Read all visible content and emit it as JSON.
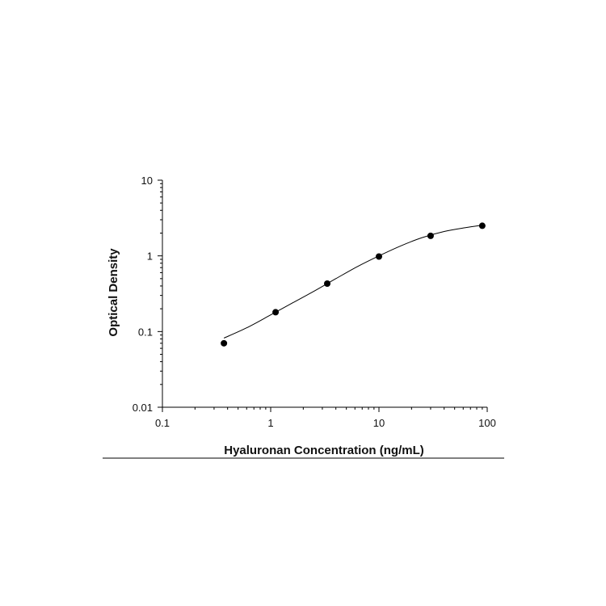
{
  "chart_data": {
    "type": "scatter",
    "title": "",
    "xlabel": "Hyaluronan Concentration (ng/mL)",
    "ylabel": "Optical Density",
    "xscale": "log",
    "yscale": "log",
    "xlim": [
      0.1,
      100
    ],
    "ylim": [
      0.01,
      10
    ],
    "x_ticks": [
      "0.1",
      "1",
      "10",
      "100"
    ],
    "y_ticks": [
      "0.01",
      "0.1",
      "1",
      "10"
    ],
    "grid": false,
    "legend": "none",
    "series": [
      {
        "points": [
          {
            "x": 0.37,
            "y": 0.07
          },
          {
            "x": 1.11,
            "y": 0.18
          },
          {
            "x": 3.33,
            "y": 0.43
          },
          {
            "x": 10,
            "y": 0.98
          },
          {
            "x": 30,
            "y": 1.84
          },
          {
            "x": 90,
            "y": 2.5
          }
        ]
      }
    ],
    "fit_curve": {
      "type": "4PL",
      "points": [
        {
          "x": 0.37,
          "y": 0.082
        },
        {
          "x": 0.6,
          "y": 0.112
        },
        {
          "x": 1.0,
          "y": 0.166
        },
        {
          "x": 1.6,
          "y": 0.24
        },
        {
          "x": 2.5,
          "y": 0.34
        },
        {
          "x": 4.0,
          "y": 0.5
        },
        {
          "x": 6.3,
          "y": 0.72
        },
        {
          "x": 10,
          "y": 1.0
        },
        {
          "x": 16,
          "y": 1.36
        },
        {
          "x": 25,
          "y": 1.74
        },
        {
          "x": 40,
          "y": 2.1
        },
        {
          "x": 63,
          "y": 2.36
        },
        {
          "x": 90,
          "y": 2.54
        }
      ]
    },
    "colors": {
      "points": "#000000",
      "curve": "#000000",
      "axes": "#000000"
    }
  }
}
